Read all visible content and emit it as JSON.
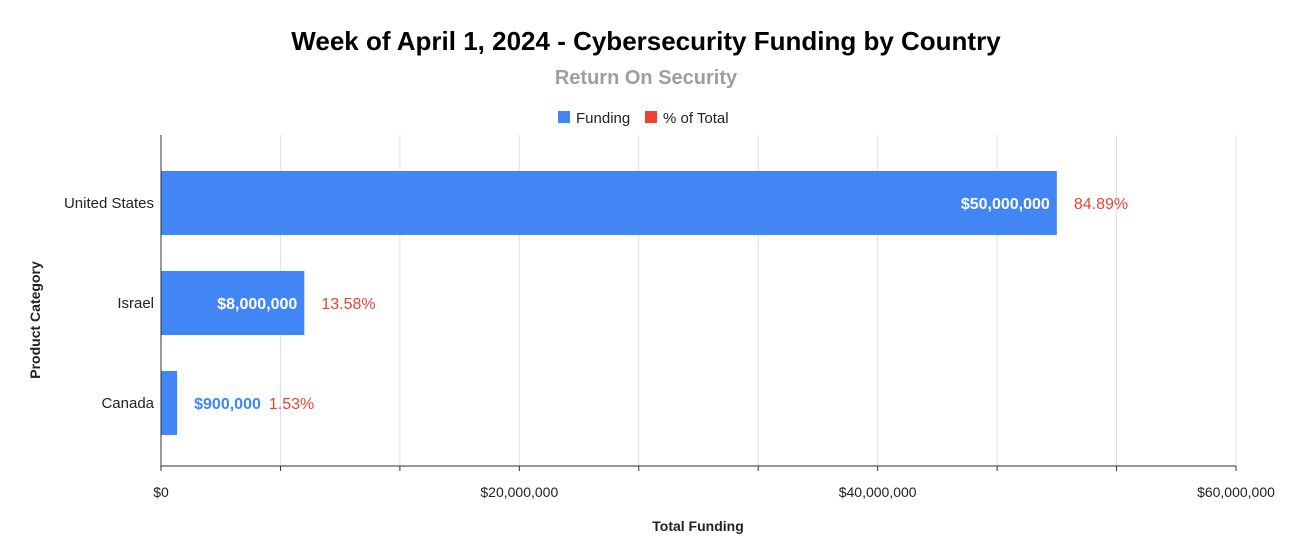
{
  "chart_data": {
    "type": "bar",
    "orientation": "horizontal",
    "title": "Week of April 1, 2024 - Cybersecurity Funding by Country",
    "subtitle": "Return On Security",
    "xlabel": "Total Funding",
    "ylabel": "Product Category",
    "categories": [
      "United States",
      "Israel",
      "Canada"
    ],
    "series": [
      {
        "name": "Funding",
        "color": "#4285f4",
        "values": [
          50000000,
          8000000,
          900000
        ],
        "labels": [
          "$50,000,000",
          "$8,000,000",
          "$900,000"
        ]
      },
      {
        "name": "% of Total",
        "color": "#ea4335",
        "values": [
          84.89,
          13.58,
          1.53
        ],
        "labels": [
          "84.89%",
          "13.58%",
          "1.53%"
        ]
      }
    ],
    "xlim": [
      0,
      60000000
    ],
    "xticks": [
      0,
      20000000,
      40000000,
      60000000
    ],
    "xtick_labels": [
      "$0",
      "$20,000,000",
      "$40,000,000",
      "$60,000,000"
    ],
    "grid": true,
    "legend_position": "top"
  }
}
